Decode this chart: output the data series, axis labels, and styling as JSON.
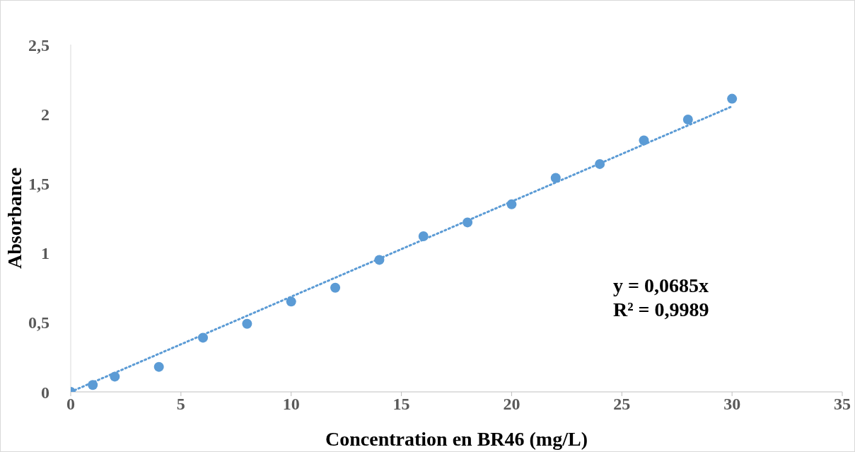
{
  "chart_data": {
    "type": "scatter",
    "xlabel": "Concentration en BR46 (mg/L)",
    "ylabel": "Absorbance",
    "xlim": [
      0,
      35
    ],
    "xticks": [
      0,
      5,
      10,
      15,
      20,
      25,
      30,
      35
    ],
    "ylim": [
      0,
      2.5
    ],
    "yticks": [
      0,
      {
        "value": 0.5,
        "label": "0,5"
      },
      1,
      {
        "value": 1.5,
        "label": "1,5"
      },
      2,
      {
        "value": 2.5,
        "label": "2,5"
      }
    ],
    "grid": false,
    "legend": false,
    "series": [
      {
        "color": "#5b9bd5",
        "marker": "circle",
        "x": [
          0,
          1,
          2,
          4,
          6,
          8,
          10,
          12,
          14,
          16,
          18,
          20,
          22,
          24,
          26,
          28,
          30
        ],
        "values": [
          0,
          0.05,
          0.11,
          0.18,
          0.39,
          0.49,
          0.65,
          0.75,
          0.95,
          1.12,
          1.22,
          1.35,
          1.54,
          1.64,
          1.81,
          1.96,
          2.11
        ]
      },
      {
        "type": "line",
        "color": "#5b9bd5",
        "marker": "none",
        "line_style": "dotted",
        "x": [
          0,
          30
        ],
        "values": [
          0,
          2.055
        ]
      }
    ],
    "annotations": [
      "y = 0,0685x",
      "R² = 0,9989"
    ]
  }
}
